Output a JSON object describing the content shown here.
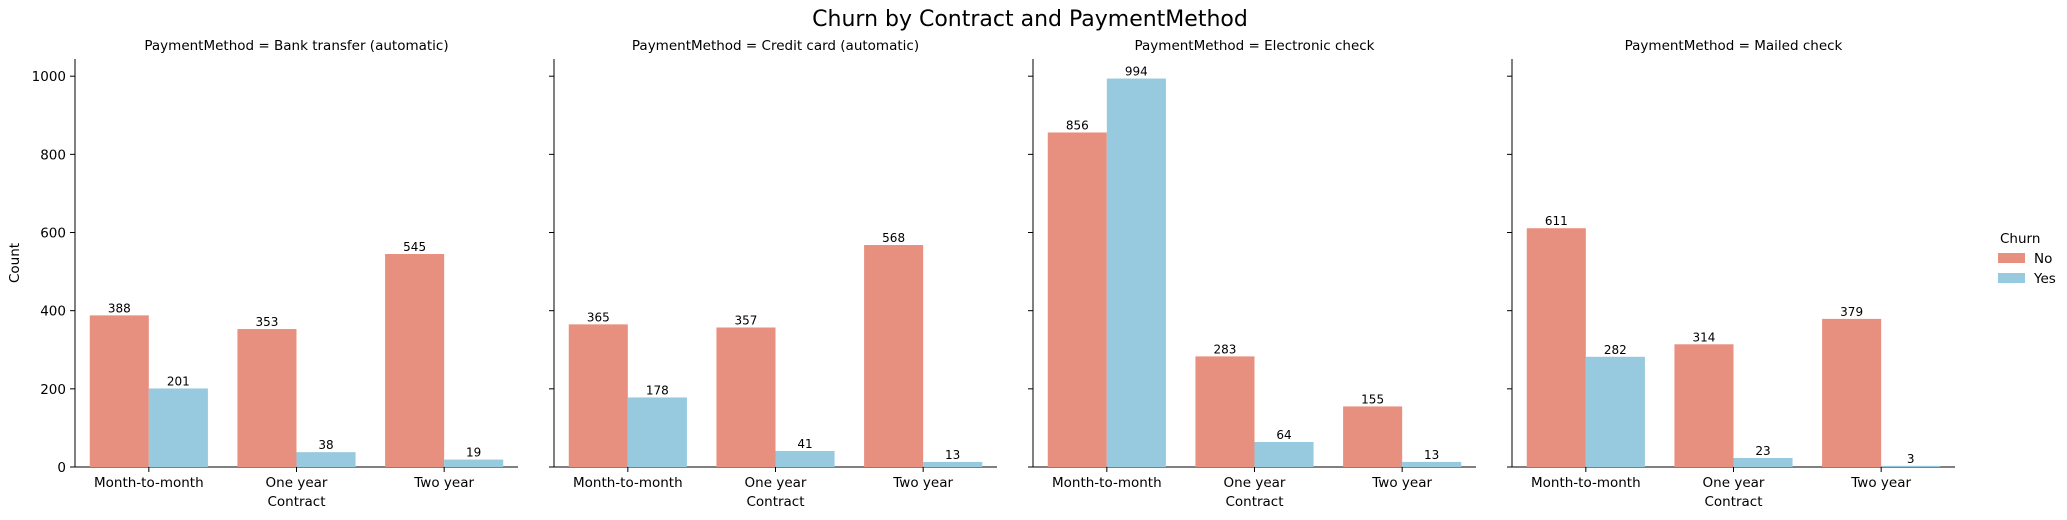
{
  "figure_title": "Churn by Contract and PaymentMethod",
  "colors": {
    "No": "#e8907f",
    "Yes": "#97cadf",
    "axis": "#000000",
    "text": "#000000"
  },
  "legend": {
    "title": "Churn",
    "placement": "right",
    "entries": [
      "No",
      "Yes"
    ]
  },
  "chart_data": [
    {
      "type": "bar",
      "title": "PaymentMethod = Bank transfer (automatic)",
      "xlabel": "Contract",
      "ylabel": "Count",
      "categories": [
        "Month-to-month",
        "One year",
        "Two year"
      ],
      "series": [
        {
          "name": "No",
          "values": [
            388,
            353,
            545
          ]
        },
        {
          "name": "Yes",
          "values": [
            201,
            38,
            19
          ]
        }
      ],
      "ylim": [
        0,
        1044
      ],
      "yticks": [
        0,
        200,
        400,
        600,
        800,
        1000
      ],
      "grid": false
    },
    {
      "type": "bar",
      "title": "PaymentMethod = Credit card (automatic)",
      "xlabel": "Contract",
      "ylabel": "",
      "categories": [
        "Month-to-month",
        "One year",
        "Two year"
      ],
      "series": [
        {
          "name": "No",
          "values": [
            365,
            357,
            568
          ]
        },
        {
          "name": "Yes",
          "values": [
            178,
            41,
            13
          ]
        }
      ],
      "ylim": [
        0,
        1044
      ],
      "yticks": [
        0,
        200,
        400,
        600,
        800,
        1000
      ],
      "grid": false
    },
    {
      "type": "bar",
      "title": "PaymentMethod = Electronic check",
      "xlabel": "Contract",
      "ylabel": "",
      "categories": [
        "Month-to-month",
        "One year",
        "Two year"
      ],
      "series": [
        {
          "name": "No",
          "values": [
            856,
            283,
            155
          ]
        },
        {
          "name": "Yes",
          "values": [
            994,
            64,
            13
          ]
        }
      ],
      "ylim": [
        0,
        1044
      ],
      "yticks": [
        0,
        200,
        400,
        600,
        800,
        1000
      ],
      "grid": false
    },
    {
      "type": "bar",
      "title": "PaymentMethod = Mailed check",
      "xlabel": "Contract",
      "ylabel": "",
      "categories": [
        "Month-to-month",
        "One year",
        "Two year"
      ],
      "series": [
        {
          "name": "No",
          "values": [
            611,
            314,
            379
          ]
        },
        {
          "name": "Yes",
          "values": [
            282,
            23,
            3
          ]
        }
      ],
      "ylim": [
        0,
        1044
      ],
      "yticks": [
        0,
        200,
        400,
        600,
        800,
        1000
      ],
      "grid": false
    }
  ]
}
